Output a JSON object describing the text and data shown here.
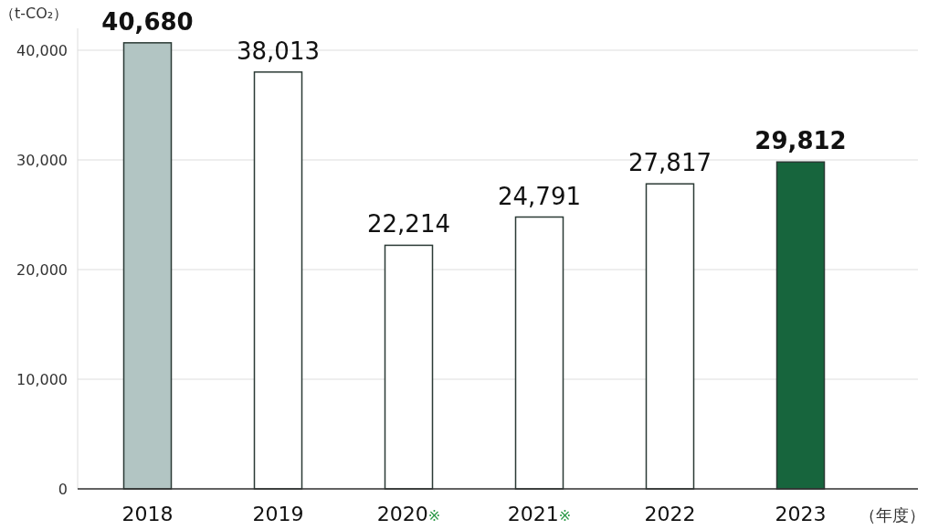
{
  "chart_data": {
    "type": "bar",
    "categories": [
      "2018",
      "2019",
      "2020※",
      "2021※",
      "2022",
      "2023"
    ],
    "values": [
      40680,
      38013,
      22214,
      24791,
      27817,
      29812
    ],
    "colors": [
      "#b2c5c3",
      "#ffffff",
      "#ffffff",
      "#ffffff",
      "#ffffff",
      "#17653d"
    ],
    "ylabel": "（t-CO₂）",
    "xlabel": "（年度）",
    "value_labels": [
      "40,680",
      "38,013",
      "22,214",
      "24,791",
      "27,817",
      "29,812"
    ],
    "ylim": [
      0,
      42000
    ],
    "yticks": [
      {
        "value": 0,
        "label": "0"
      },
      {
        "value": 10000,
        "label": "10,000"
      },
      {
        "value": 20000,
        "label": "20,000"
      },
      {
        "value": 30000,
        "label": "30,000"
      },
      {
        "value": 40000,
        "label": "40,000"
      }
    ],
    "grid": "y"
  }
}
